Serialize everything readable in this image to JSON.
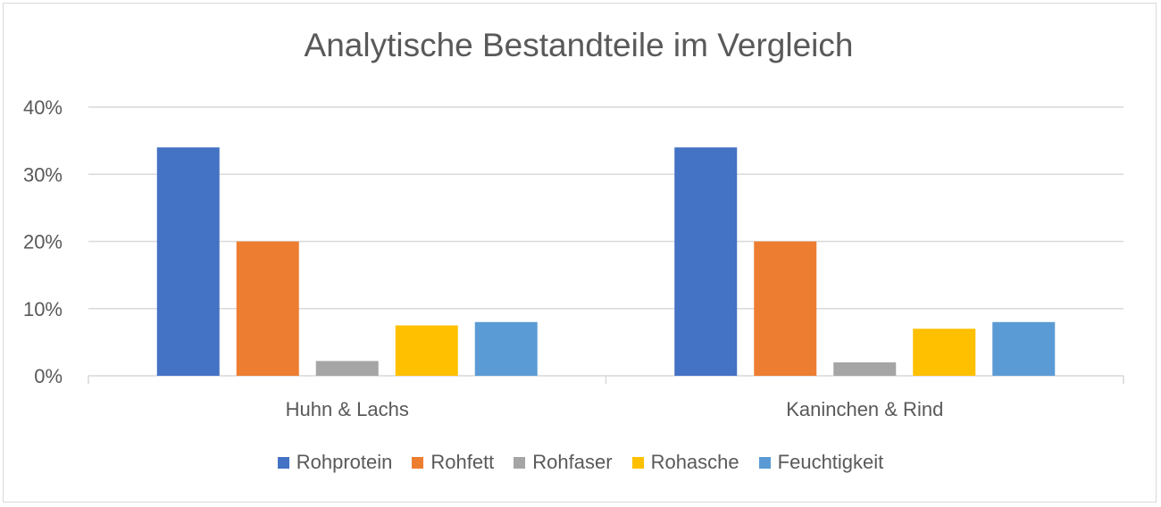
{
  "chart_data": {
    "type": "bar",
    "title": "Analytische Bestandteile im Vergleich",
    "categories": [
      "Huhn & Lachs",
      "Kaninchen & Rind"
    ],
    "series": [
      {
        "name": "Rohprotein",
        "color": "#4472c4",
        "values": [
          34,
          34
        ]
      },
      {
        "name": "Rohfett",
        "color": "#ed7d31",
        "values": [
          20,
          20
        ]
      },
      {
        "name": "Rohfaser",
        "color": "#a5a5a5",
        "values": [
          2.2,
          2.0
        ]
      },
      {
        "name": "Rohasche",
        "color": "#ffc000",
        "values": [
          7.5,
          7.0
        ]
      },
      {
        "name": "Feuchtigkeit",
        "color": "#5b9bd5",
        "values": [
          8,
          8
        ]
      }
    ],
    "ylim": [
      0,
      40
    ],
    "yticks": [
      0,
      10,
      20,
      30,
      40
    ],
    "ytick_labels": [
      "0%",
      "10%",
      "20%",
      "30%",
      "40%"
    ],
    "xlabel": "",
    "ylabel": "",
    "grid": true,
    "legend_position": "bottom"
  }
}
